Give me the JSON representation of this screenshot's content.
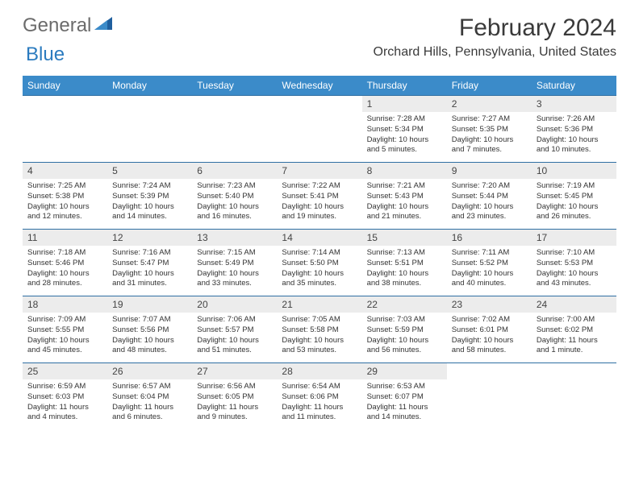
{
  "logo": {
    "word1": "General",
    "word2": "Blue"
  },
  "title": "February 2024",
  "location": "Orchard Hills, Pennsylvania, United States",
  "colors": {
    "header_bg": "#3b8bc9",
    "header_text": "#ffffff",
    "daynum_bg": "#ececec",
    "row_border": "#2f6fa3",
    "logo_gray": "#6b6b6b",
    "logo_blue": "#2b7bbf"
  },
  "day_headers": [
    "Sunday",
    "Monday",
    "Tuesday",
    "Wednesday",
    "Thursday",
    "Friday",
    "Saturday"
  ],
  "weeks": [
    [
      {
        "n": "",
        "sr": "",
        "ss": "",
        "dl": ""
      },
      {
        "n": "",
        "sr": "",
        "ss": "",
        "dl": ""
      },
      {
        "n": "",
        "sr": "",
        "ss": "",
        "dl": ""
      },
      {
        "n": "",
        "sr": "",
        "ss": "",
        "dl": ""
      },
      {
        "n": "1",
        "sr": "Sunrise: 7:28 AM",
        "ss": "Sunset: 5:34 PM",
        "dl": "Daylight: 10 hours and 5 minutes."
      },
      {
        "n": "2",
        "sr": "Sunrise: 7:27 AM",
        "ss": "Sunset: 5:35 PM",
        "dl": "Daylight: 10 hours and 7 minutes."
      },
      {
        "n": "3",
        "sr": "Sunrise: 7:26 AM",
        "ss": "Sunset: 5:36 PM",
        "dl": "Daylight: 10 hours and 10 minutes."
      }
    ],
    [
      {
        "n": "4",
        "sr": "Sunrise: 7:25 AM",
        "ss": "Sunset: 5:38 PM",
        "dl": "Daylight: 10 hours and 12 minutes."
      },
      {
        "n": "5",
        "sr": "Sunrise: 7:24 AM",
        "ss": "Sunset: 5:39 PM",
        "dl": "Daylight: 10 hours and 14 minutes."
      },
      {
        "n": "6",
        "sr": "Sunrise: 7:23 AM",
        "ss": "Sunset: 5:40 PM",
        "dl": "Daylight: 10 hours and 16 minutes."
      },
      {
        "n": "7",
        "sr": "Sunrise: 7:22 AM",
        "ss": "Sunset: 5:41 PM",
        "dl": "Daylight: 10 hours and 19 minutes."
      },
      {
        "n": "8",
        "sr": "Sunrise: 7:21 AM",
        "ss": "Sunset: 5:43 PM",
        "dl": "Daylight: 10 hours and 21 minutes."
      },
      {
        "n": "9",
        "sr": "Sunrise: 7:20 AM",
        "ss": "Sunset: 5:44 PM",
        "dl": "Daylight: 10 hours and 23 minutes."
      },
      {
        "n": "10",
        "sr": "Sunrise: 7:19 AM",
        "ss": "Sunset: 5:45 PM",
        "dl": "Daylight: 10 hours and 26 minutes."
      }
    ],
    [
      {
        "n": "11",
        "sr": "Sunrise: 7:18 AM",
        "ss": "Sunset: 5:46 PM",
        "dl": "Daylight: 10 hours and 28 minutes."
      },
      {
        "n": "12",
        "sr": "Sunrise: 7:16 AM",
        "ss": "Sunset: 5:47 PM",
        "dl": "Daylight: 10 hours and 31 minutes."
      },
      {
        "n": "13",
        "sr": "Sunrise: 7:15 AM",
        "ss": "Sunset: 5:49 PM",
        "dl": "Daylight: 10 hours and 33 minutes."
      },
      {
        "n": "14",
        "sr": "Sunrise: 7:14 AM",
        "ss": "Sunset: 5:50 PM",
        "dl": "Daylight: 10 hours and 35 minutes."
      },
      {
        "n": "15",
        "sr": "Sunrise: 7:13 AM",
        "ss": "Sunset: 5:51 PM",
        "dl": "Daylight: 10 hours and 38 minutes."
      },
      {
        "n": "16",
        "sr": "Sunrise: 7:11 AM",
        "ss": "Sunset: 5:52 PM",
        "dl": "Daylight: 10 hours and 40 minutes."
      },
      {
        "n": "17",
        "sr": "Sunrise: 7:10 AM",
        "ss": "Sunset: 5:53 PM",
        "dl": "Daylight: 10 hours and 43 minutes."
      }
    ],
    [
      {
        "n": "18",
        "sr": "Sunrise: 7:09 AM",
        "ss": "Sunset: 5:55 PM",
        "dl": "Daylight: 10 hours and 45 minutes."
      },
      {
        "n": "19",
        "sr": "Sunrise: 7:07 AM",
        "ss": "Sunset: 5:56 PM",
        "dl": "Daylight: 10 hours and 48 minutes."
      },
      {
        "n": "20",
        "sr": "Sunrise: 7:06 AM",
        "ss": "Sunset: 5:57 PM",
        "dl": "Daylight: 10 hours and 51 minutes."
      },
      {
        "n": "21",
        "sr": "Sunrise: 7:05 AM",
        "ss": "Sunset: 5:58 PM",
        "dl": "Daylight: 10 hours and 53 minutes."
      },
      {
        "n": "22",
        "sr": "Sunrise: 7:03 AM",
        "ss": "Sunset: 5:59 PM",
        "dl": "Daylight: 10 hours and 56 minutes."
      },
      {
        "n": "23",
        "sr": "Sunrise: 7:02 AM",
        "ss": "Sunset: 6:01 PM",
        "dl": "Daylight: 10 hours and 58 minutes."
      },
      {
        "n": "24",
        "sr": "Sunrise: 7:00 AM",
        "ss": "Sunset: 6:02 PM",
        "dl": "Daylight: 11 hours and 1 minute."
      }
    ],
    [
      {
        "n": "25",
        "sr": "Sunrise: 6:59 AM",
        "ss": "Sunset: 6:03 PM",
        "dl": "Daylight: 11 hours and 4 minutes."
      },
      {
        "n": "26",
        "sr": "Sunrise: 6:57 AM",
        "ss": "Sunset: 6:04 PM",
        "dl": "Daylight: 11 hours and 6 minutes."
      },
      {
        "n": "27",
        "sr": "Sunrise: 6:56 AM",
        "ss": "Sunset: 6:05 PM",
        "dl": "Daylight: 11 hours and 9 minutes."
      },
      {
        "n": "28",
        "sr": "Sunrise: 6:54 AM",
        "ss": "Sunset: 6:06 PM",
        "dl": "Daylight: 11 hours and 11 minutes."
      },
      {
        "n": "29",
        "sr": "Sunrise: 6:53 AM",
        "ss": "Sunset: 6:07 PM",
        "dl": "Daylight: 11 hours and 14 minutes."
      },
      {
        "n": "",
        "sr": "",
        "ss": "",
        "dl": ""
      },
      {
        "n": "",
        "sr": "",
        "ss": "",
        "dl": ""
      }
    ]
  ]
}
